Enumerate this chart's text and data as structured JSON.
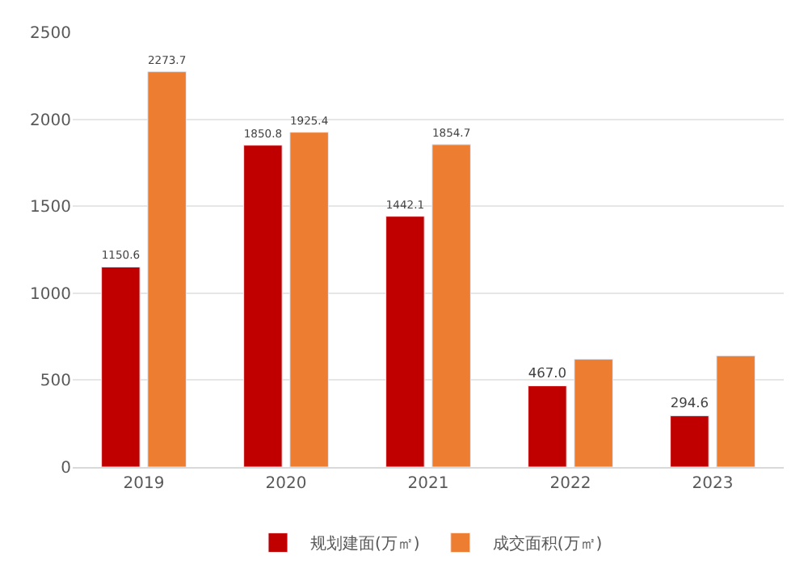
{
  "chart_data": {
    "type": "bar",
    "categories": [
      "2019",
      "2020",
      "2021",
      "2022",
      "2023"
    ],
    "series": [
      {
        "name": "规划建面(万㎡)",
        "color": "#c00000",
        "values": [
          1150.6,
          1850.8,
          1442.1,
          467.0,
          294.6
        ],
        "value_labels": [
          "1150.6",
          "1850.8",
          "1442.1",
          "467.0",
          "294.6"
        ]
      },
      {
        "name": "成交面积(万㎡)",
        "color": "#ed7d31",
        "values": [
          2273.7,
          1925.4,
          1854.7,
          620,
          640
        ],
        "value_labels": [
          "2273.7",
          "1925.4",
          "1854.7",
          null,
          null
        ]
      }
    ],
    "ylim": [
      0,
      2500
    ],
    "yticks": [
      0,
      500,
      1000,
      1500,
      2000,
      2500
    ],
    "grid": "y",
    "legend": "bottom"
  }
}
